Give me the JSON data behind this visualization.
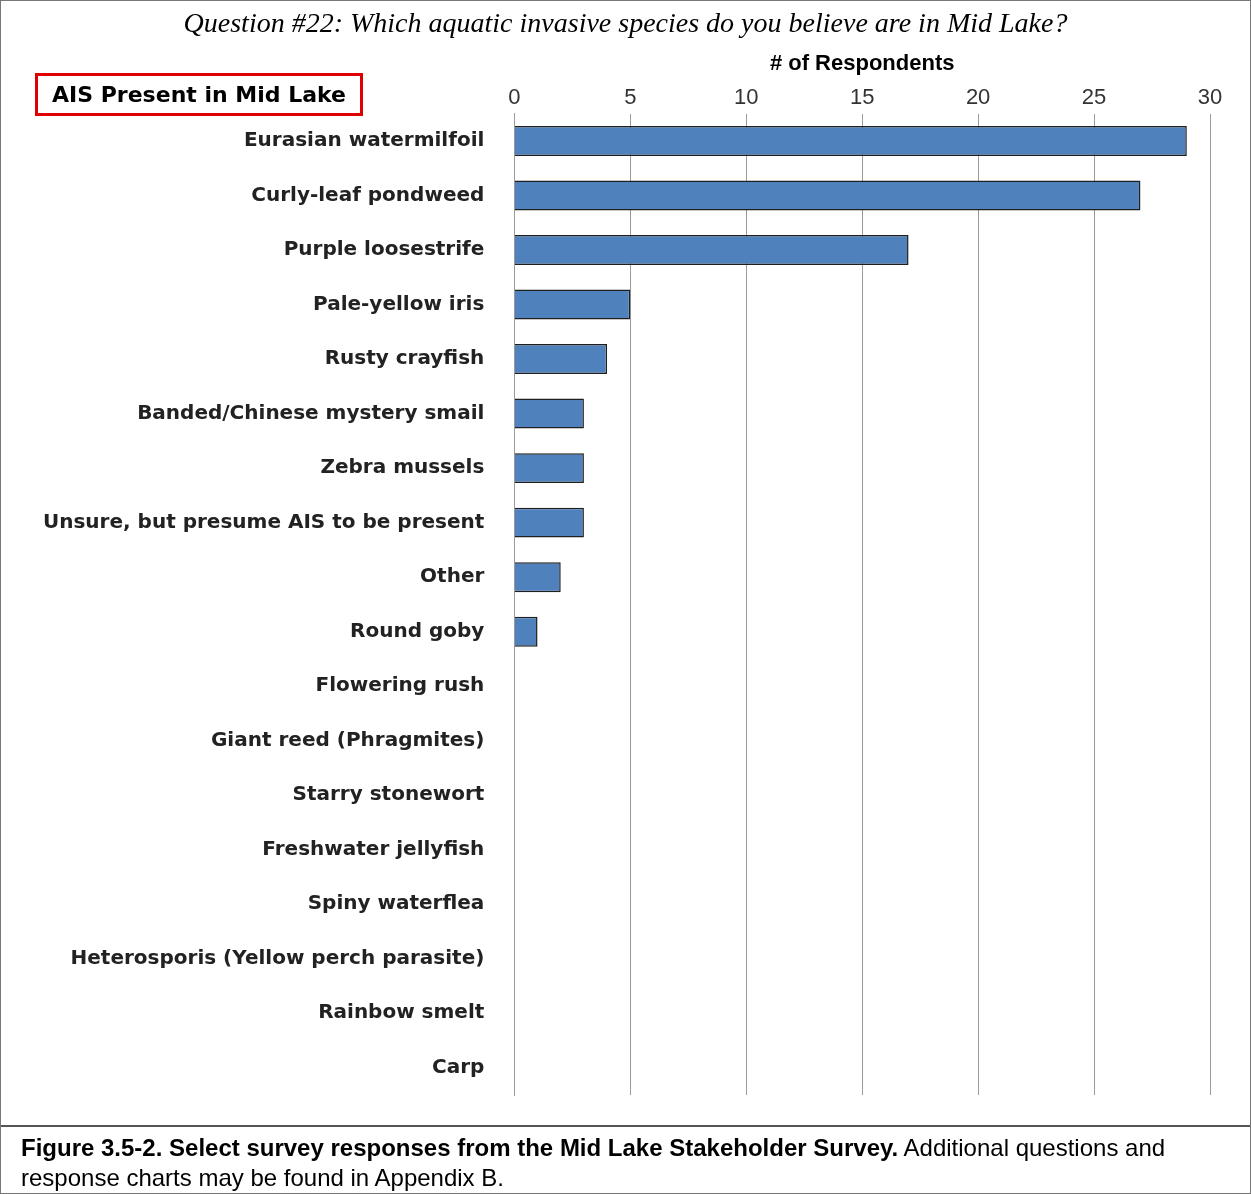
{
  "chart_data": {
    "type": "bar",
    "orientation": "horizontal",
    "title": "Question #22:  Which aquatic invasive species do you believe are in Mid Lake?",
    "xlabel": "# of Respondents",
    "categories": [
      "Eurasian watermilfoil",
      "Curly-leaf pondweed",
      "Purple loosestrife",
      "Pale-yellow iris",
      "Rusty crayfish",
      "Banded/Chinese mystery smail",
      "Zebra mussels",
      "Unsure, but presume AIS to be present",
      "Other",
      "Round goby",
      "Flowering rush",
      "Giant reed (Phragmites)",
      "Starry stonewort",
      "Freshwater jellyfish",
      "Spiny waterflea",
      "Heterosporis (Yellow perch parasite)",
      "Rainbow smelt",
      "Carp"
    ],
    "values": [
      29,
      27,
      17,
      5,
      4,
      3,
      3,
      3,
      2,
      1,
      0,
      0,
      0,
      0,
      0,
      0,
      0,
      0
    ],
    "color": "#4f81bd",
    "xlim": [
      0,
      30
    ],
    "xticks": [
      0,
      5,
      10,
      15,
      20,
      25,
      30
    ],
    "grid": "x",
    "legend": false,
    "annotations": [
      "AIS Present in Mid Lake",
      "Figure 3.5-2.  Select survey responses from the Mid Lake Stakeholder Survey.",
      "Additional questions and response charts may be found in Appendix B."
    ]
  }
}
